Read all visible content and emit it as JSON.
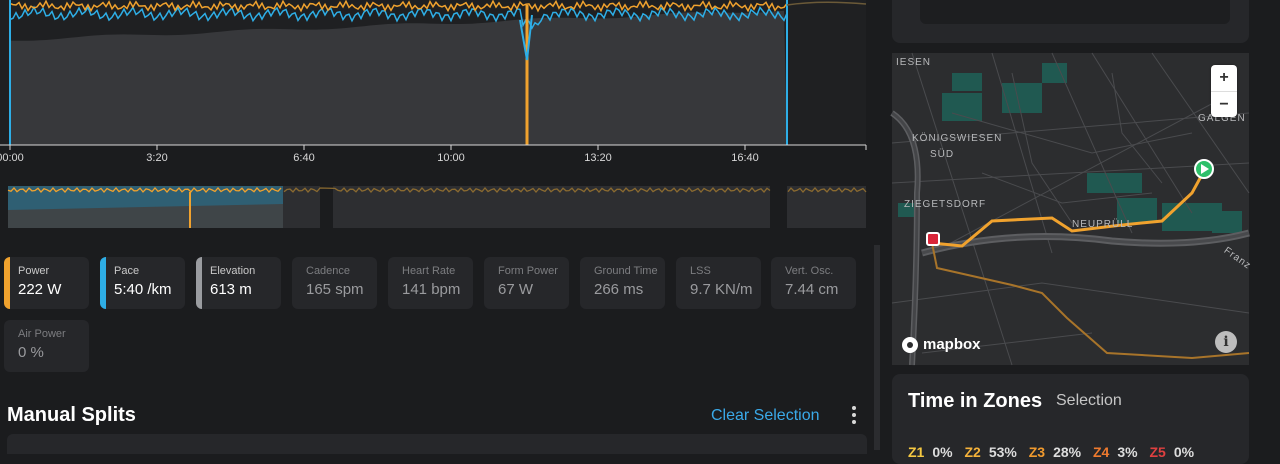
{
  "chart": {
    "x_ticks": [
      "00:00",
      "3:20",
      "6:40",
      "10:00",
      "13:20",
      "16:40"
    ],
    "colors": {
      "power": "#f0a22e",
      "pace": "#2eaee6",
      "elevation": "#5a5b5e"
    }
  },
  "metrics": [
    {
      "label": "Power",
      "value": "222 W",
      "color": "#f0a22e"
    },
    {
      "label": "Pace",
      "value": "5:40 /km",
      "color": "#2eaee6"
    },
    {
      "label": "Elevation",
      "value": "613 m",
      "color": "#9a9ca0"
    },
    {
      "label": "Cadence",
      "value": "165 spm"
    },
    {
      "label": "Heart Rate",
      "value": "141 bpm"
    },
    {
      "label": "Form Power",
      "value": "67 W"
    },
    {
      "label": "Ground Time",
      "value": "266 ms"
    },
    {
      "label": "LSS",
      "value": "9.7 KN/m"
    },
    {
      "label": "Vert. Osc.",
      "value": "7.44 cm"
    },
    {
      "label": "Air Power",
      "value": "0 %"
    }
  ],
  "splits": {
    "title": "Manual Splits",
    "clear_label": "Clear Selection"
  },
  "map": {
    "labels": [
      "IESEN",
      "KÖNIGSWIESEN",
      "SÜD",
      "ZIEGETSDORF",
      "NEUPRÜLL",
      "GALGEN",
      "Franz"
    ],
    "zoom_in": "+",
    "zoom_out": "−",
    "attribution": "mapbox",
    "info": "i",
    "route_color": "#f0a22e"
  },
  "zones": {
    "title": "Time in Zones",
    "selection_label": "Selection",
    "row": [
      "Z1",
      "0%",
      "Z2",
      "53%",
      "Z3",
      "28%",
      "Z4",
      "3%",
      "Z5",
      "0%"
    ]
  }
}
